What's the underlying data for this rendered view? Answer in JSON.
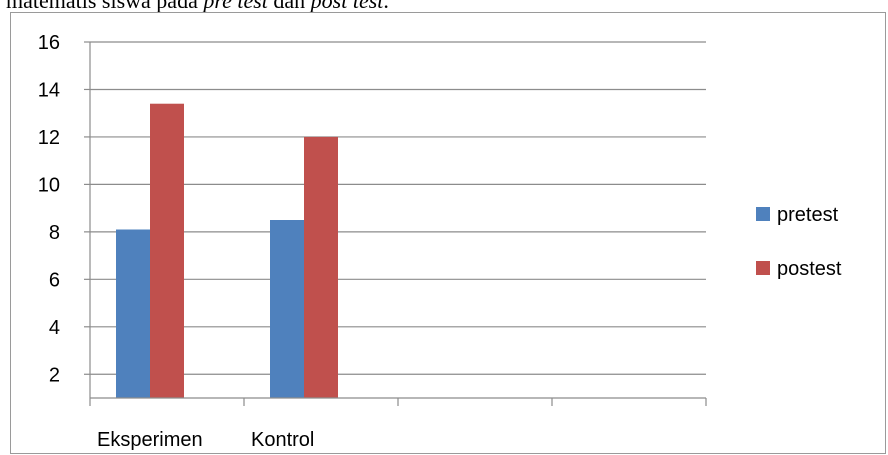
{
  "caption": {
    "prefix": "matematis siswa pada ",
    "term1": "pre test",
    "middle": " dan ",
    "term2": "post test",
    "suffix": "."
  },
  "chart_data": {
    "type": "bar",
    "categories": [
      "Eksperimen",
      "Kontrol",
      "",
      ""
    ],
    "series": [
      {
        "name": "pretest",
        "values": [
          8.1,
          8.5,
          null,
          null
        ],
        "color": "#4f81bd"
      },
      {
        "name": "postest",
        "values": [
          13.4,
          12,
          null,
          null
        ],
        "color": "#c0504d"
      }
    ],
    "ylim": [
      1,
      16
    ],
    "yticks": [
      2,
      4,
      6,
      8,
      10,
      12,
      14,
      16
    ],
    "grid": true,
    "legend_position": "right",
    "title": "",
    "xlabel": "",
    "ylabel": ""
  }
}
